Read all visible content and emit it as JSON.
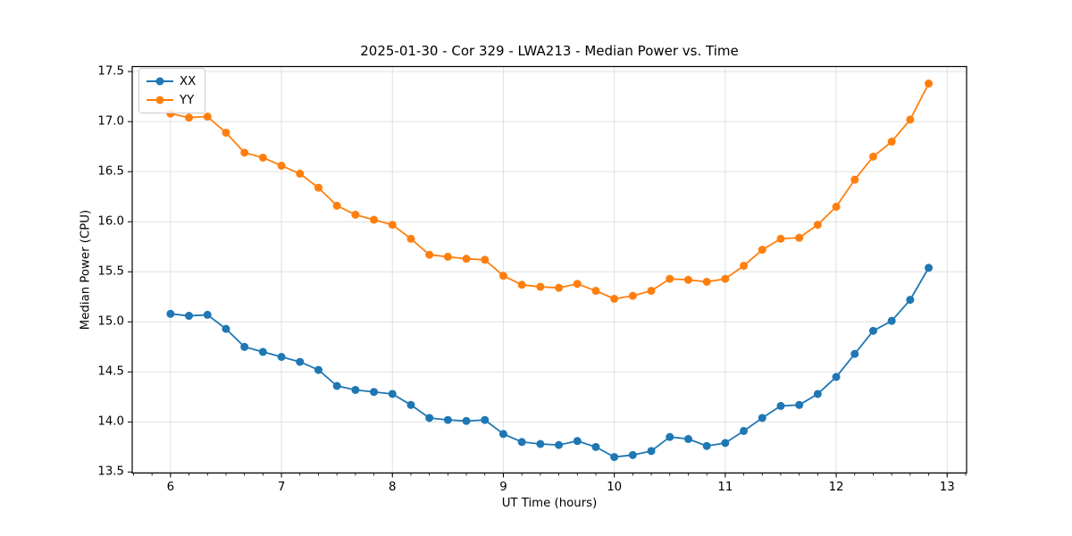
{
  "figure": {
    "background": "#ffffff"
  },
  "chart_data": {
    "type": "line",
    "title": "2025-01-30 - Cor 329 - LWA213 - Median Power vs. Time",
    "xlabel": "UT Time (hours)",
    "ylabel": "Median Power (CPU)",
    "xlim": [
      5.655,
      13.175
    ],
    "ylim": [
      13.49,
      17.55
    ],
    "xticks": [
      6,
      7,
      8,
      9,
      10,
      11,
      12,
      13
    ],
    "xtick_labels": [
      "6",
      "7",
      "8",
      "9",
      "10",
      "11",
      "12",
      "13"
    ],
    "yticks": [
      13.5,
      14.0,
      14.5,
      15.0,
      15.5,
      16.0,
      16.5,
      17.0,
      17.5
    ],
    "ytick_labels": [
      "13.5",
      "14.0",
      "14.5",
      "15.0",
      "15.5",
      "16.0",
      "16.5",
      "17.0",
      "17.5"
    ],
    "grid": true,
    "grid_color": "#e0e0e0",
    "axis_color": "#000000",
    "minor_tick_interval_x": 0.166667,
    "legend_position": "upper-left",
    "marker": "circle",
    "x": [
      6.0,
      6.1667,
      6.3333,
      6.5,
      6.6667,
      6.8333,
      7.0,
      7.1667,
      7.3333,
      7.5,
      7.6667,
      7.8333,
      8.0,
      8.1667,
      8.3333,
      8.5,
      8.6667,
      8.8333,
      9.0,
      9.1667,
      9.3333,
      9.5,
      9.6667,
      9.8333,
      10.0,
      10.1667,
      10.3333,
      10.5,
      10.6667,
      10.8333,
      11.0,
      11.1667,
      11.3333,
      11.5,
      11.6667,
      11.8333,
      12.0,
      12.1667,
      12.3333,
      12.5,
      12.6667,
      12.8333
    ],
    "series": [
      {
        "name": "XX",
        "color": "#1f77b4",
        "values": [
          15.08,
          15.06,
          15.07,
          14.93,
          14.75,
          14.7,
          14.65,
          14.6,
          14.52,
          14.36,
          14.32,
          14.3,
          14.28,
          14.17,
          14.04,
          14.02,
          14.01,
          14.02,
          13.88,
          13.8,
          13.78,
          13.77,
          13.81,
          13.75,
          13.65,
          13.67,
          13.71,
          13.85,
          13.83,
          13.76,
          13.79,
          13.91,
          14.04,
          14.16,
          14.17,
          14.28,
          14.45,
          14.68,
          14.91,
          15.01,
          15.22,
          15.54
        ]
      },
      {
        "name": "YY",
        "color": "#ff7f0e",
        "values": [
          17.08,
          17.04,
          17.05,
          16.89,
          16.69,
          16.64,
          16.56,
          16.48,
          16.34,
          16.16,
          16.07,
          16.02,
          15.97,
          15.83,
          15.67,
          15.65,
          15.63,
          15.62,
          15.46,
          15.37,
          15.35,
          15.34,
          15.38,
          15.31,
          15.23,
          15.26,
          15.31,
          15.43,
          15.42,
          15.4,
          15.43,
          15.56,
          15.72,
          15.83,
          15.84,
          15.97,
          16.15,
          16.42,
          16.65,
          16.8,
          17.02,
          17.38
        ]
      }
    ]
  }
}
